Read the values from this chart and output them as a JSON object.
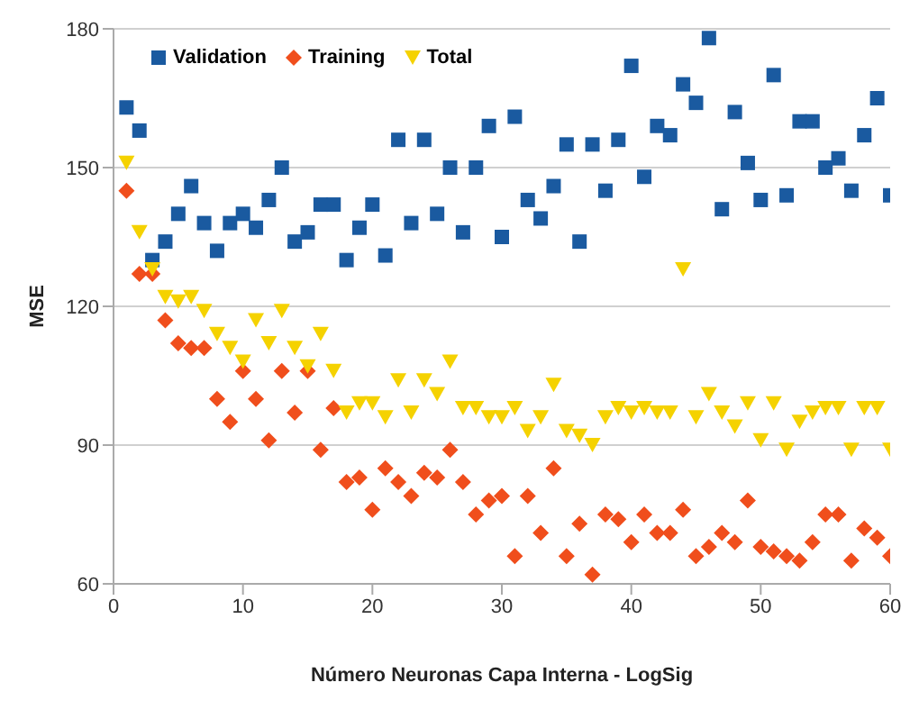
{
  "chart_data": {
    "type": "scatter",
    "xlabel": "Número Neuronas Capa Interna - LogSig",
    "ylabel": "MSE",
    "x": [
      1,
      2,
      3,
      4,
      5,
      6,
      7,
      8,
      9,
      10,
      11,
      12,
      13,
      14,
      15,
      16,
      17,
      18,
      19,
      20,
      21,
      22,
      23,
      24,
      25,
      26,
      27,
      28,
      29,
      30,
      31,
      32,
      33,
      34,
      35,
      36,
      37,
      38,
      39,
      40,
      41,
      42,
      43,
      44,
      45,
      46,
      47,
      48,
      49,
      50,
      51,
      52,
      53,
      54,
      55,
      56,
      57,
      58,
      59,
      60
    ],
    "series": [
      {
        "name": "Validation",
        "color": "#1a5aa0",
        "marker": "square",
        "values": [
          163,
          158,
          130,
          134,
          140,
          146,
          138,
          132,
          138,
          140,
          137,
          143,
          150,
          134,
          136,
          142,
          142,
          130,
          137,
          142,
          131,
          156,
          138,
          156,
          140,
          150,
          136,
          150,
          159,
          135,
          161,
          143,
          139,
          146,
          155,
          134,
          155,
          145,
          156,
          172,
          148,
          159,
          157,
          168,
          164,
          178,
          141,
          162,
          151,
          143,
          170,
          144,
          160,
          160,
          150,
          152,
          145,
          157,
          165,
          144
        ]
      },
      {
        "name": "Training",
        "color": "#f04e1c",
        "marker": "diamond",
        "values": [
          145,
          127,
          127,
          117,
          112,
          111,
          111,
          100,
          95,
          106,
          100,
          91,
          106,
          97,
          106,
          89,
          98,
          82,
          83,
          76,
          85,
          82,
          79,
          84,
          83,
          89,
          82,
          75,
          78,
          79,
          66,
          79,
          71,
          85,
          66,
          73,
          62,
          75,
          74,
          69,
          75,
          71,
          71,
          76,
          66,
          68,
          71,
          69,
          78,
          68,
          67,
          66,
          65,
          69,
          75,
          75,
          65,
          72,
          70,
          66
        ]
      },
      {
        "name": "Total",
        "color": "#f5d200",
        "marker": "triangle",
        "values": [
          151,
          136,
          128,
          122,
          121,
          122,
          119,
          114,
          111,
          108,
          117,
          112,
          119,
          111,
          107,
          114,
          106,
          97,
          99,
          99,
          96,
          104,
          97,
          104,
          101,
          108,
          98,
          98,
          96,
          96,
          98,
          93,
          96,
          103,
          93,
          92,
          90,
          96,
          98,
          97,
          98,
          97,
          97,
          128,
          96,
          101,
          97,
          94,
          99,
          91,
          99,
          89,
          95,
          97,
          98,
          98,
          89,
          98,
          98,
          89
        ]
      }
    ],
    "xlim": [
      0,
      60
    ],
    "xticks": [
      0,
      10,
      20,
      30,
      40,
      50,
      60
    ],
    "ylim": [
      60,
      180
    ],
    "yticks": [
      60,
      90,
      120,
      150,
      180
    ],
    "grid": "y",
    "legend": "top left"
  }
}
